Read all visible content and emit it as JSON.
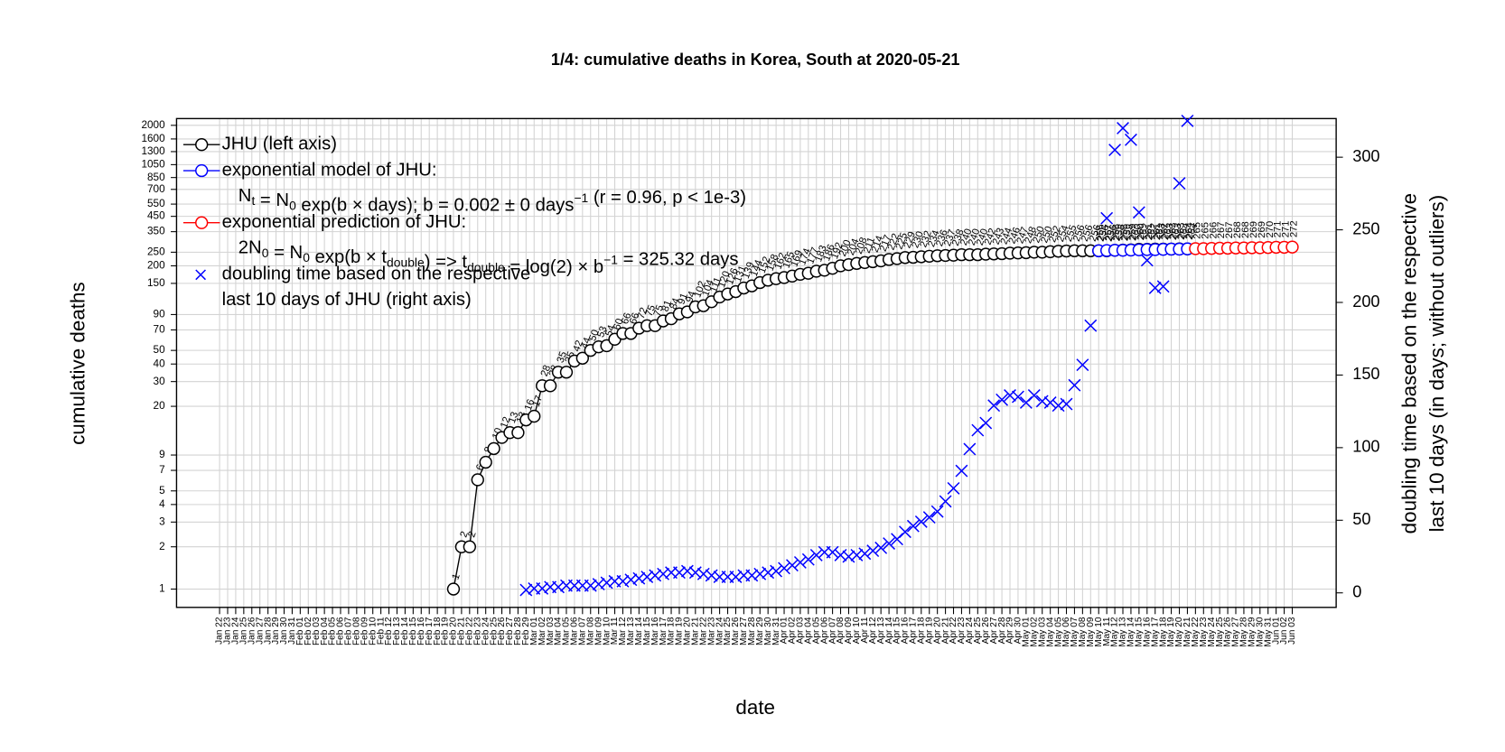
{
  "chart_data": {
    "type": "line",
    "title": "1/4: cumulative deaths in Korea, South at 2020-05-21",
    "x_label": "date",
    "y_label": "cumulative deaths",
    "y2_label": [
      "doubling time based on the respective",
      "last 10 days (in days; without outliers)"
    ],
    "log_y": true,
    "grid": true,
    "legend": "top-left",
    "categories": [
      "Jan 22",
      "Jan 23",
      "Jan 24",
      "Jan 25",
      "Jan 26",
      "Jan 27",
      "Jan 28",
      "Jan 29",
      "Jan 30",
      "Jan 31",
      "Feb 01",
      "Feb 02",
      "Feb 03",
      "Feb 04",
      "Feb 05",
      "Feb 06",
      "Feb 07",
      "Feb 08",
      "Feb 09",
      "Feb 10",
      "Feb 11",
      "Feb 12",
      "Feb 13",
      "Feb 14",
      "Feb 15",
      "Feb 16",
      "Feb 17",
      "Feb 18",
      "Feb 19",
      "Feb 20",
      "Feb 21",
      "Feb 22",
      "Feb 23",
      "Feb 24",
      "Feb 25",
      "Feb 26",
      "Feb 27",
      "Feb 28",
      "Feb 29",
      "Mar 01",
      "Mar 02",
      "Mar 03",
      "Mar 04",
      "Mar 05",
      "Mar 06",
      "Mar 07",
      "Mar 08",
      "Mar 09",
      "Mar 10",
      "Mar 11",
      "Mar 12",
      "Mar 13",
      "Mar 14",
      "Mar 15",
      "Mar 16",
      "Mar 17",
      "Mar 18",
      "Mar 19",
      "Mar 20",
      "Mar 21",
      "Mar 22",
      "Mar 23",
      "Mar 24",
      "Mar 25",
      "Mar 26",
      "Mar 27",
      "Mar 28",
      "Mar 29",
      "Mar 30",
      "Mar 31",
      "Apr 01",
      "Apr 02",
      "Apr 03",
      "Apr 04",
      "Apr 05",
      "Apr 06",
      "Apr 07",
      "Apr 08",
      "Apr 09",
      "Apr 10",
      "Apr 11",
      "Apr 12",
      "Apr 13",
      "Apr 14",
      "Apr 15",
      "Apr 16",
      "Apr 17",
      "Apr 18",
      "Apr 19",
      "Apr 20",
      "Apr 21",
      "Apr 22",
      "Apr 23",
      "Apr 24",
      "Apr 25",
      "Apr 26",
      "Apr 27",
      "Apr 28",
      "Apr 29",
      "Apr 30",
      "May 01",
      "May 02",
      "May 03",
      "May 04",
      "May 05",
      "May 06",
      "May 07",
      "May 08",
      "May 09",
      "May 10",
      "May 11",
      "May 12",
      "May 13",
      "May 14",
      "May 15",
      "May 16",
      "May 17",
      "May 18",
      "May 19",
      "May 20",
      "May 21",
      "May 22",
      "May 23",
      "May 24",
      "May 25",
      "May 26",
      "May 27",
      "May 28",
      "May 29",
      "May 30",
      "May 31",
      "Jun 01",
      "Jun 02",
      "Jun 03"
    ],
    "highlight_color": "#e69f00",
    "ylim": [
      0.741,
      2234
    ],
    "yticks": [
      1,
      2,
      3,
      4,
      5,
      7,
      9,
      20,
      30,
      40,
      50,
      70,
      90,
      150,
      200,
      250,
      350,
      450,
      550,
      700,
      850,
      1050,
      1300,
      1600,
      2000
    ],
    "y2lim": [
      -10,
      326.6
    ],
    "y2ticks": [
      0,
      50,
      100,
      150,
      200,
      250,
      300
    ],
    "series": [
      {
        "name": "JHU (left axis)",
        "color": "#000000",
        "marker": "circle",
        "line": true,
        "values": [
          null,
          null,
          null,
          null,
          null,
          null,
          null,
          null,
          null,
          null,
          null,
          null,
          null,
          null,
          null,
          null,
          null,
          null,
          null,
          null,
          null,
          null,
          null,
          null,
          null,
          null,
          null,
          null,
          null,
          1,
          2,
          2,
          6,
          8,
          10,
          12,
          13,
          13,
          16,
          17,
          28,
          28,
          35,
          35,
          42,
          44,
          50,
          53,
          54,
          60,
          66,
          66,
          72,
          75,
          75,
          81,
          84,
          91,
          94,
          102,
          104,
          111,
          120,
          126,
          131,
          139,
          144,
          152,
          158,
          162,
          165,
          169,
          174,
          177,
          183,
          186,
          192,
          200,
          204,
          208,
          211,
          214,
          217,
          222,
          225,
          229,
          230,
          232,
          234,
          236,
          237,
          238,
          240,
          240,
          240,
          242,
          243,
          244,
          246,
          247,
          248,
          250,
          250,
          252,
          254,
          255,
          256,
          256,
          256,
          256,
          256,
          258,
          259,
          260,
          262,
          262,
          263,
          263,
          263,
          264,
          264,
          null,
          null,
          null,
          null,
          null,
          null,
          null,
          null,
          null,
          null,
          null,
          null,
          null
        ]
      },
      {
        "name": "exponential model of JHU:",
        "color": "#0000ff",
        "marker": "circle",
        "line": false,
        "legend_detail": [
          "N",
          {
            "sub": "t"
          },
          " = N",
          {
            "sub": "0"
          },
          " exp(b × days); b = 0.002 ± 0 days",
          {
            "sup": "−1"
          },
          " (r = 0.96, p < 1e-3)"
        ],
        "values": [
          null,
          null,
          null,
          null,
          null,
          null,
          null,
          null,
          null,
          null,
          null,
          null,
          null,
          null,
          null,
          null,
          null,
          null,
          null,
          null,
          null,
          null,
          null,
          null,
          null,
          null,
          null,
          null,
          null,
          null,
          null,
          null,
          null,
          null,
          null,
          null,
          null,
          null,
          null,
          null,
          null,
          null,
          null,
          null,
          null,
          null,
          null,
          null,
          null,
          null,
          null,
          null,
          null,
          null,
          null,
          null,
          null,
          null,
          null,
          null,
          null,
          null,
          null,
          null,
          null,
          null,
          null,
          null,
          null,
          null,
          null,
          null,
          null,
          null,
          null,
          null,
          null,
          null,
          null,
          null,
          null,
          null,
          null,
          null,
          null,
          null,
          null,
          null,
          null,
          null,
          null,
          null,
          null,
          null,
          null,
          null,
          null,
          null,
          null,
          null,
          null,
          null,
          null,
          null,
          null,
          null,
          null,
          null,
          null,
          256,
          257,
          258,
          258,
          259,
          260,
          261,
          261,
          262,
          263,
          263,
          264,
          null,
          null,
          null,
          null,
          null,
          null,
          null,
          null,
          null,
          null,
          null,
          null,
          null
        ]
      },
      {
        "name": "exponential prediction of JHU:",
        "color": "#ff0000",
        "marker": "circle",
        "line": false,
        "legend_detail": [
          "2N",
          {
            "sub": "0"
          },
          " = N",
          {
            "sub": "0"
          },
          " exp(b × t",
          {
            "sub": "double"
          },
          ") => t",
          {
            "sub": "double"
          },
          " = log(2) × b",
          {
            "sup": "−1"
          },
          " = 325.32 days"
        ],
        "values": [
          null,
          null,
          null,
          null,
          null,
          null,
          null,
          null,
          null,
          null,
          null,
          null,
          null,
          null,
          null,
          null,
          null,
          null,
          null,
          null,
          null,
          null,
          null,
          null,
          null,
          null,
          null,
          null,
          null,
          null,
          null,
          null,
          null,
          null,
          null,
          null,
          null,
          null,
          null,
          null,
          null,
          null,
          null,
          null,
          null,
          null,
          null,
          null,
          null,
          null,
          null,
          null,
          null,
          null,
          null,
          null,
          null,
          null,
          null,
          null,
          null,
          null,
          null,
          null,
          null,
          null,
          null,
          null,
          null,
          null,
          null,
          null,
          null,
          null,
          null,
          null,
          null,
          null,
          null,
          null,
          null,
          null,
          null,
          null,
          null,
          null,
          null,
          null,
          null,
          null,
          null,
          null,
          null,
          null,
          null,
          null,
          null,
          null,
          null,
          null,
          null,
          null,
          null,
          null,
          null,
          null,
          null,
          null,
          null,
          null,
          null,
          null,
          null,
          null,
          null,
          null,
          null,
          null,
          null,
          null,
          null,
          265,
          265,
          266,
          267,
          267,
          268,
          268,
          269,
          269,
          270,
          271,
          271,
          272
        ]
      },
      {
        "name": "doubling time based on the respective",
        "color": "#0000ff",
        "marker": "x",
        "line": false,
        "axis": "y2",
        "legend_detail": [
          "last 10 days of JHU (right axis)"
        ],
        "values": [
          null,
          null,
          null,
          null,
          null,
          null,
          null,
          null,
          null,
          null,
          null,
          null,
          null,
          null,
          null,
          null,
          null,
          null,
          null,
          null,
          null,
          null,
          null,
          null,
          null,
          null,
          null,
          null,
          null,
          null,
          null,
          null,
          null,
          null,
          null,
          null,
          null,
          null,
          2,
          3,
          3,
          4,
          4,
          5,
          5,
          5,
          5,
          6,
          7,
          8,
          8,
          9,
          10,
          11,
          12,
          13,
          14,
          14,
          15,
          14,
          13,
          12,
          11,
          11,
          11,
          12,
          12,
          13,
          14,
          15,
          17,
          19,
          21,
          23,
          26,
          28,
          28,
          26,
          25,
          26,
          27,
          29,
          31,
          34,
          37,
          42,
          46,
          49,
          52,
          56,
          63,
          72,
          84,
          99,
          112,
          117,
          129,
          133,
          136,
          135,
          131,
          136,
          132,
          131,
          129,
          130,
          143,
          157,
          184,
          null,
          258,
          305,
          320,
          312,
          262,
          229,
          210,
          211,
          null,
          282,
          325,
          null,
          null,
          null,
          null,
          null,
          null,
          null,
          null,
          null,
          null,
          null,
          null,
          null
        ]
      }
    ]
  }
}
